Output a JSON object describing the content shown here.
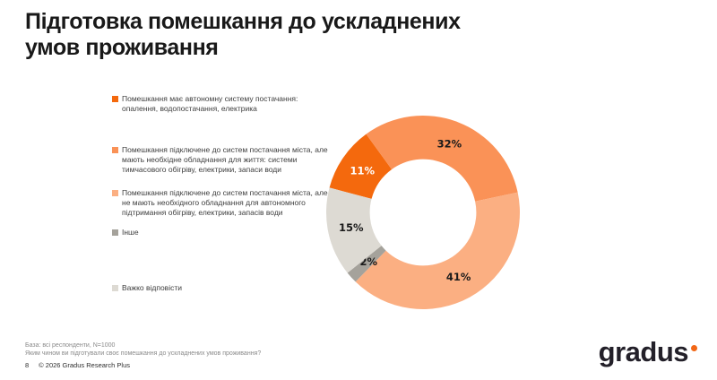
{
  "slide": {
    "title": "Підготовка помешкання до ускладнених\nумов проживання"
  },
  "chart_data": {
    "type": "pie",
    "subtype": "donut",
    "title": "Підготовка помешкання до ускладнених умов проживання",
    "legend_position": "left",
    "categories": [
      "Помешкання має автономну систему постачання: опалення, водопостачання, електрика",
      "Помешкання підключене до систем постачання міста, але мають необхідне обладнання для життя: системи тимчасового обігріву, електрики, запаси води",
      "Помешкання підключене до систем постачання міста, але не мають необхідного обладнання для автономного підтримання обігріву, електрики, запасів води",
      "Інше",
      "Важко відповісти"
    ],
    "values": [
      11,
      32,
      41,
      2,
      15
    ],
    "data_labels": [
      "11%",
      "32%",
      "41%",
      "2%",
      "15%"
    ],
    "colors": [
      "#F4690D",
      "#FA9257",
      "#FBAF82",
      "#A5A29B",
      "#DDDAD3"
    ],
    "label_text_colors": [
      "#FFFFFF",
      "#1A1A1A",
      "#1A1A1A",
      "#1A1A1A",
      "#1A1A1A"
    ],
    "start_angle_deg": 284.8,
    "inner_radius_ratio": 0.55
  },
  "footer": {
    "base_note": "База: всі респонденти, N=1000",
    "question_note": "Яким чином ви підготували своє помешкання до ускладнених умов проживання?",
    "page_number": "8",
    "copyright": "© 2026 Gradus Research Plus"
  },
  "logo": {
    "text": "gradus",
    "dot_color": "#F26716"
  }
}
